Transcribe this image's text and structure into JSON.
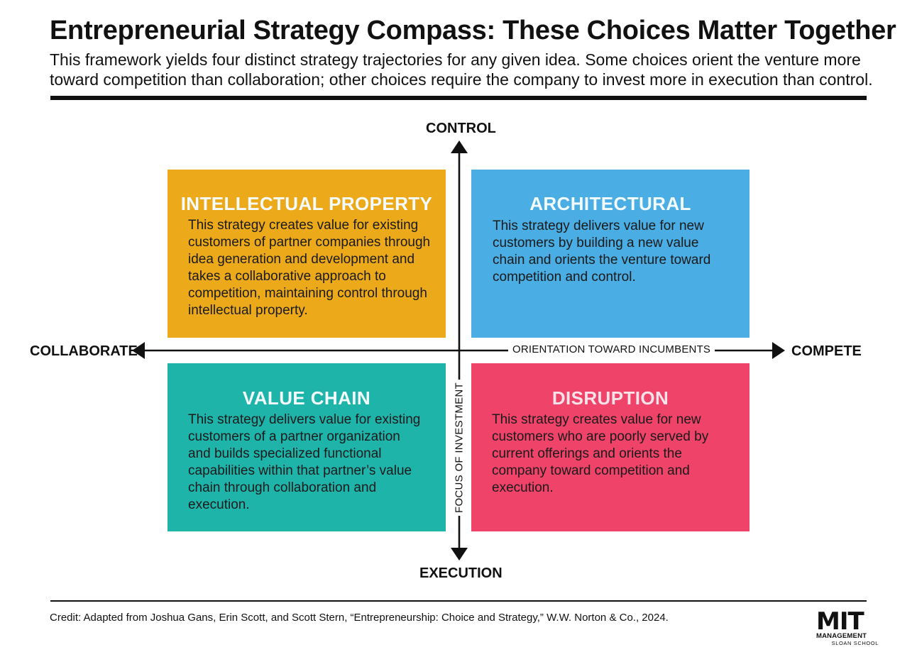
{
  "title": "Entrepreneurial Strategy Compass: These Choices Matter Together",
  "subtitle_line1": "This framework yields four distinct strategy trajectories for any given idea. Some choices orient the venture more",
  "subtitle_line2": "toward competition than collaboration; other choices require the company to invest more in execution than control.",
  "axes": {
    "top": "CONTROL",
    "bottom": "EXECUTION",
    "left": "COLLABORATE",
    "right": "COMPETE",
    "horizontal_label": "ORIENTATION TOWARD INCUMBENTS",
    "vertical_label": "FOCUS OF INVESTMENT"
  },
  "quadrants": {
    "ip": {
      "title": "INTELLECTUAL PROPERTY",
      "lines": [
        "This strategy creates value for existing",
        "customers of partner companies through",
        "idea generation and development and",
        "takes a collaborative approach to",
        "competition, maintaining control through",
        "intellectual property."
      ],
      "color": "#ecaa1b"
    },
    "arc": {
      "title": "ARCHITECTURAL",
      "lines": [
        "This strategy delivers value for new",
        "customers by building a new value",
        "chain and orients the venture toward",
        "competition and control."
      ],
      "color": "#4aade3"
    },
    "vc": {
      "title": "VALUE CHAIN",
      "lines": [
        "This strategy delivers value for existing",
        "customers of a partner organization",
        "and builds specialized functional",
        "capabilities within that partner’s value",
        "chain through collaboration and",
        "execution."
      ],
      "color": "#1fb4aa"
    },
    "dis": {
      "title": "DISRUPTION",
      "lines": [
        "This strategy creates value for new",
        "customers who are poorly served by",
        "current offerings and orients the",
        "company toward competition and",
        "execution."
      ],
      "color": "#ef4369"
    }
  },
  "credit": "Credit: Adapted from Joshua Gans, Erin Scott, and Scott Stern, “Entrepreneurship: Choice and Strategy,” W.W. Norton & Co., 2024.",
  "logo": {
    "mark": "MIT",
    "line1": "MANAGEMENT",
    "line2": "SLOAN SCHOOL"
  }
}
